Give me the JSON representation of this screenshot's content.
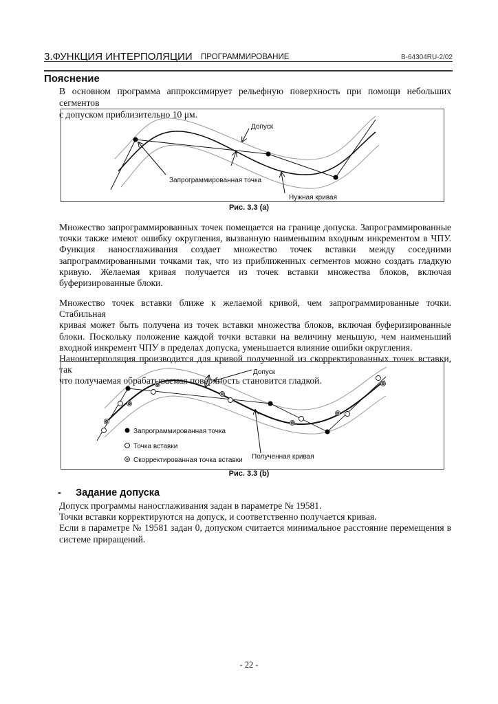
{
  "header": {
    "chapter": "3.ФУНКЦИЯ ИНТЕРПОЛЯЦИИ",
    "section": "ПРОГРАММИРОВАНИЕ",
    "doc_code": "B-64304RU-2/02"
  },
  "heading": "Пояснение",
  "intro": [
    "В основном программа аппроксимирует рельефную поверхность при помощи небольших сегментов",
    "с допуском приблизительно 10 μм."
  ],
  "figure_a": {
    "caption": "Рис. 3.3 (a)",
    "label_tolerance": "Допуск",
    "label_programmed_point": "Запрограммированная точка",
    "label_desired_curve": "Нужная кривая"
  },
  "para2": [
    "Множество запрограммированных точек помещается на границе допуска. Запрограммированные",
    "точки также имеют ошибку округления, вызванную наименьшим входным инкрементом в ЧПУ.",
    "Функция наносглаживания создает множество точек вставки между соседними",
    "запрограммированными точками так, что из приближенных сегментов можно создать гладкую",
    "кривую. Желаемая кривая получается из точек вставки множества блоков, включая",
    "буферизированные блоки."
  ],
  "para3": [
    "Множество точек вставки ближе к желаемой кривой, чем запрограммированные точки. Стабильная",
    "кривая может быть получена из точек вставки множества блоков, включая буферизированные",
    "блоки. Поскольку положение каждой точки вставки на величину меньшую, чем наименьший",
    "входной инкремент ЧПУ в пределах допуска, уменьшается влияние ошибки округления.",
    "Наноинтерполяция производится для кривой полученной из скорректированных точек вставки, так",
    "что получаемая обрабатываемая поверхность становится гладкой."
  ],
  "figure_b": {
    "caption": "Рис. 3.3 (b)",
    "label_tolerance": "Допуск",
    "label_result_curve": "Полученная кривая",
    "legend": [
      "Запрограммированная точка",
      "Точка вставки",
      "Скорректированная точка вставки"
    ]
  },
  "subheading": {
    "bullet": "-",
    "title": "Задание допуска"
  },
  "para4": [
    "Допуск программы наносглаживания задан в параметре № 19581.",
    "Точки вставки корректируются на допуск, и соответственно получается кривая.",
    "Если в параметре № 19581 задан 0, допуском считается минимальное расстояние перемещения в",
    "системе приращений."
  ],
  "page_number": "- 22 -"
}
